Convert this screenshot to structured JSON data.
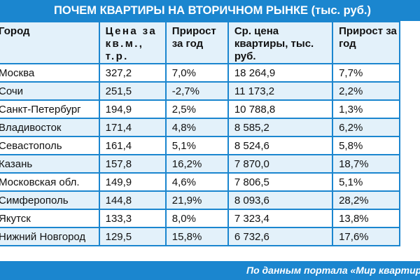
{
  "title": "ПОЧЕМ КВАРТИРЫ НА ВТОРИЧНОМ РЫНКЕ (тыс. руб.)",
  "columns": [
    "Город",
    "Цена за кв.м., т.р.",
    "Прирост за год",
    "Ср. цена квартиры, тыс. руб.",
    "Прирост за год"
  ],
  "rows": [
    [
      "Москва",
      "327,2",
      "7,0%",
      "18 264,9",
      "7,7%"
    ],
    [
      "Сочи",
      "251,5",
      "-2,7%",
      "11 173,2",
      "2,2%"
    ],
    [
      "Санкт-Петербург",
      "194,9",
      "2,5%",
      "10 788,8",
      "1,3%"
    ],
    [
      "Владивосток",
      "171,4",
      "4,8%",
      "8 585,2",
      "6,2%"
    ],
    [
      "Севастополь",
      "161,4",
      "5,1%",
      "8 524,6",
      "5,8%"
    ],
    [
      "Казань",
      "157,8",
      "16,2%",
      "7 870,0",
      "18,7%"
    ],
    [
      "Московская обл.",
      "149,9",
      "4,6%",
      "7 806,5",
      "5,1%"
    ],
    [
      "Симферополь",
      "144,8",
      "21,9%",
      "8 093,6",
      "28,2%"
    ],
    [
      "Якутск",
      "133,3",
      "8,0%",
      "7 323,4",
      "13,8%"
    ],
    [
      "Нижний Новгород",
      "129,5",
      "15,8%",
      "6 732,6",
      "17,6%"
    ]
  ],
  "source": "По данным портала «Мир квартир»",
  "colors": {
    "accent": "#1b86cf",
    "stripe": "#e3f1fa"
  }
}
